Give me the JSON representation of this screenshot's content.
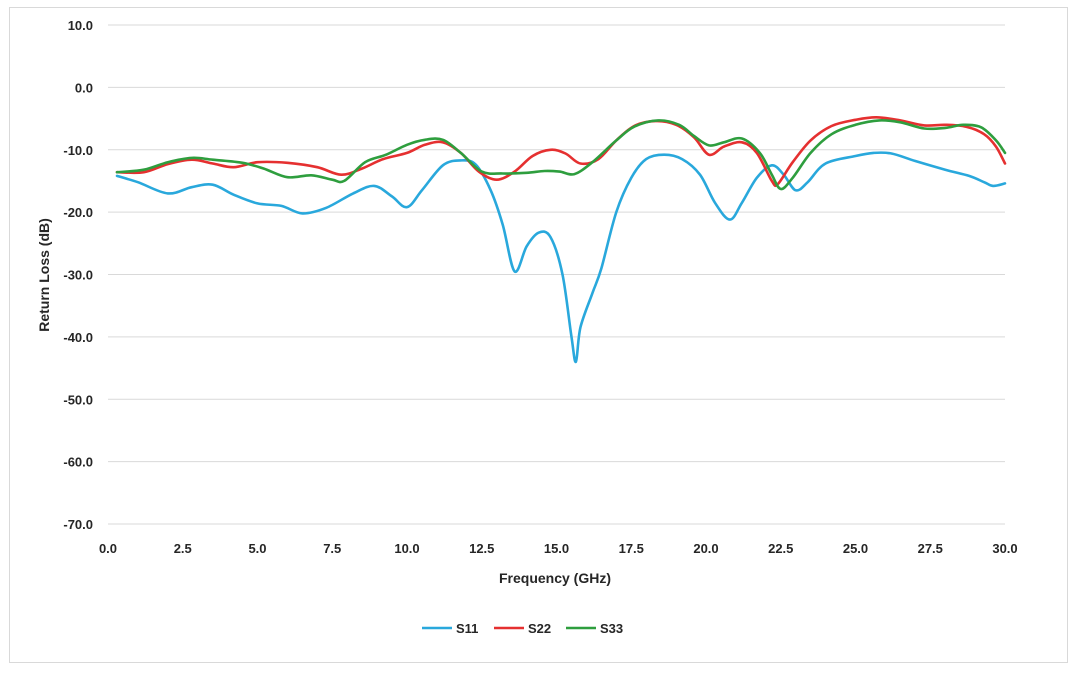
{
  "chart_data": {
    "type": "line",
    "title": "",
    "xlabel": "Frequency (GHz)",
    "ylabel": "Return Loss (dB)",
    "xlim": [
      0,
      30
    ],
    "ylim": [
      -70,
      10
    ],
    "x_ticks": [
      0,
      2.5,
      5,
      7.5,
      10,
      12.5,
      15,
      17.5,
      20,
      22.5,
      25,
      27.5,
      30
    ],
    "x_tick_labels": [
      "0.0",
      "2.5",
      "5.0",
      "7.5",
      "10.0",
      "12.5",
      "15.0",
      "17.5",
      "20.0",
      "22.5",
      "25.0",
      "27.5",
      "30.0"
    ],
    "y_ticks": [
      10,
      0,
      -10,
      -20,
      -30,
      -40,
      -50,
      -60,
      -70
    ],
    "y_tick_labels": [
      "10.0",
      "0.0",
      "-10.0",
      "-20.0",
      "-30.0",
      "-40.0",
      "-50.0",
      "-60.0",
      "-70.0"
    ],
    "grid": "horizontal",
    "legend_position": "bottom",
    "series": [
      {
        "name": "S11",
        "color": "#29a8dc",
        "points": [
          [
            0.3,
            -14.2
          ],
          [
            1.0,
            -15.2
          ],
          [
            2.0,
            -17.0
          ],
          [
            2.8,
            -16.0
          ],
          [
            3.5,
            -15.6
          ],
          [
            4.2,
            -17.2
          ],
          [
            5.0,
            -18.6
          ],
          [
            5.8,
            -19.0
          ],
          [
            6.5,
            -20.2
          ],
          [
            7.3,
            -19.3
          ],
          [
            8.2,
            -17.0
          ],
          [
            8.9,
            -15.8
          ],
          [
            9.5,
            -17.5
          ],
          [
            10.0,
            -19.2
          ],
          [
            10.5,
            -16.5
          ],
          [
            11.2,
            -12.5
          ],
          [
            11.8,
            -11.7
          ],
          [
            12.3,
            -12.4
          ],
          [
            12.8,
            -16.5
          ],
          [
            13.2,
            -22.0
          ],
          [
            13.6,
            -29.5
          ],
          [
            14.0,
            -25.5
          ],
          [
            14.4,
            -23.3
          ],
          [
            14.8,
            -24.0
          ],
          [
            15.2,
            -30.0
          ],
          [
            15.5,
            -40.0
          ],
          [
            15.65,
            -44.0
          ],
          [
            15.8,
            -38.5
          ],
          [
            16.2,
            -33.0
          ],
          [
            16.5,
            -29.0
          ],
          [
            17.0,
            -20.0
          ],
          [
            17.5,
            -14.5
          ],
          [
            18.0,
            -11.5
          ],
          [
            18.6,
            -10.8
          ],
          [
            19.2,
            -11.5
          ],
          [
            19.8,
            -14.0
          ],
          [
            20.3,
            -18.5
          ],
          [
            20.8,
            -21.2
          ],
          [
            21.2,
            -18.5
          ],
          [
            21.7,
            -14.5
          ],
          [
            22.2,
            -12.5
          ],
          [
            22.6,
            -14.0
          ],
          [
            23.0,
            -16.5
          ],
          [
            23.4,
            -15.2
          ],
          [
            24.0,
            -12.2
          ],
          [
            25.0,
            -11.0
          ],
          [
            25.6,
            -10.5
          ],
          [
            26.2,
            -10.6
          ],
          [
            27.0,
            -11.8
          ],
          [
            28.0,
            -13.2
          ],
          [
            28.8,
            -14.2
          ],
          [
            29.3,
            -15.2
          ],
          [
            29.6,
            -15.8
          ],
          [
            30.0,
            -15.4
          ]
        ]
      },
      {
        "name": "S22",
        "color": "#e53030",
        "points": [
          [
            0.3,
            -13.6
          ],
          [
            1.2,
            -13.6
          ],
          [
            2.0,
            -12.3
          ],
          [
            2.8,
            -11.6
          ],
          [
            3.5,
            -12.2
          ],
          [
            4.2,
            -12.8
          ],
          [
            5.0,
            -12.0
          ],
          [
            6.0,
            -12.1
          ],
          [
            7.0,
            -12.8
          ],
          [
            7.8,
            -14.0
          ],
          [
            8.5,
            -13.0
          ],
          [
            9.2,
            -11.5
          ],
          [
            10.0,
            -10.5
          ],
          [
            10.6,
            -9.2
          ],
          [
            11.2,
            -8.8
          ],
          [
            11.8,
            -10.5
          ],
          [
            12.4,
            -13.5
          ],
          [
            13.0,
            -14.8
          ],
          [
            13.6,
            -13.5
          ],
          [
            14.2,
            -11.0
          ],
          [
            14.8,
            -10.0
          ],
          [
            15.3,
            -10.6
          ],
          [
            15.8,
            -12.2
          ],
          [
            16.4,
            -11.5
          ],
          [
            17.0,
            -8.5
          ],
          [
            17.6,
            -6.2
          ],
          [
            18.3,
            -5.4
          ],
          [
            19.0,
            -6.0
          ],
          [
            19.6,
            -8.0
          ],
          [
            20.1,
            -10.8
          ],
          [
            20.6,
            -9.5
          ],
          [
            21.2,
            -8.8
          ],
          [
            21.7,
            -10.5
          ],
          [
            22.2,
            -15.0
          ],
          [
            22.4,
            -15.5
          ],
          [
            22.9,
            -12.0
          ],
          [
            23.5,
            -8.5
          ],
          [
            24.2,
            -6.2
          ],
          [
            25.0,
            -5.2
          ],
          [
            25.7,
            -4.8
          ],
          [
            26.5,
            -5.3
          ],
          [
            27.3,
            -6.1
          ],
          [
            28.0,
            -6.0
          ],
          [
            28.7,
            -6.3
          ],
          [
            29.3,
            -7.5
          ],
          [
            29.7,
            -9.5
          ],
          [
            30.0,
            -12.2
          ]
        ]
      },
      {
        "name": "S33",
        "color": "#2e9e3e",
        "points": [
          [
            0.3,
            -13.6
          ],
          [
            1.2,
            -13.2
          ],
          [
            2.0,
            -12.0
          ],
          [
            2.8,
            -11.3
          ],
          [
            3.5,
            -11.6
          ],
          [
            4.5,
            -12.1
          ],
          [
            5.2,
            -13.0
          ],
          [
            6.0,
            -14.4
          ],
          [
            6.8,
            -14.1
          ],
          [
            7.5,
            -14.8
          ],
          [
            7.9,
            -15.0
          ],
          [
            8.6,
            -12.0
          ],
          [
            9.3,
            -10.8
          ],
          [
            10.0,
            -9.2
          ],
          [
            10.6,
            -8.4
          ],
          [
            11.2,
            -8.4
          ],
          [
            11.8,
            -10.5
          ],
          [
            12.5,
            -13.5
          ],
          [
            13.2,
            -13.8
          ],
          [
            14.0,
            -13.7
          ],
          [
            14.6,
            -13.4
          ],
          [
            15.1,
            -13.5
          ],
          [
            15.6,
            -13.9
          ],
          [
            16.2,
            -12.0
          ],
          [
            17.0,
            -8.5
          ],
          [
            17.6,
            -6.3
          ],
          [
            18.4,
            -5.3
          ],
          [
            19.1,
            -6.0
          ],
          [
            19.6,
            -7.8
          ],
          [
            20.1,
            -9.3
          ],
          [
            20.6,
            -8.8
          ],
          [
            21.2,
            -8.2
          ],
          [
            21.8,
            -10.5
          ],
          [
            22.2,
            -14.0
          ],
          [
            22.5,
            -16.3
          ],
          [
            22.9,
            -14.5
          ],
          [
            23.5,
            -10.5
          ],
          [
            24.2,
            -7.5
          ],
          [
            25.0,
            -6.0
          ],
          [
            25.8,
            -5.3
          ],
          [
            26.5,
            -5.6
          ],
          [
            27.3,
            -6.6
          ],
          [
            28.0,
            -6.5
          ],
          [
            28.6,
            -6.0
          ],
          [
            29.2,
            -6.4
          ],
          [
            29.7,
            -8.5
          ],
          [
            30.0,
            -10.5
          ]
        ]
      }
    ]
  }
}
